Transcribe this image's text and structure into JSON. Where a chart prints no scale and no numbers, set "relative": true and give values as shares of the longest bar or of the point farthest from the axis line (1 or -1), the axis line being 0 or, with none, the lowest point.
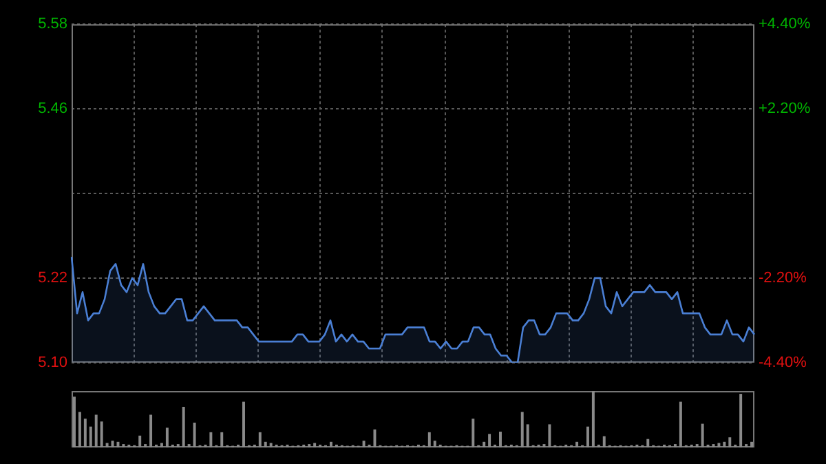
{
  "chart_data": [
    {
      "type": "area",
      "categories": [
        null,
        null,
        null,
        null,
        null,
        null,
        null,
        null,
        null,
        null,
        null,
        null,
        null,
        null,
        null,
        null,
        null,
        null,
        null,
        null,
        null,
        null,
        null,
        null,
        null,
        null,
        null,
        null,
        null,
        null,
        null,
        null,
        null,
        null,
        null,
        null,
        null,
        null,
        null,
        null,
        null,
        null,
        null,
        null,
        null,
        null,
        null,
        null,
        null,
        null,
        null,
        null,
        null,
        null,
        null,
        null,
        null,
        null,
        null,
        null,
        null,
        null,
        null,
        null,
        null,
        null,
        null,
        null,
        null,
        null,
        null,
        null,
        null,
        null,
        null,
        null,
        null,
        null,
        null,
        null,
        null,
        null,
        null,
        null,
        null,
        null,
        null,
        null,
        null,
        null,
        null,
        null,
        null,
        null,
        null,
        null,
        null,
        null,
        null,
        null,
        null,
        null,
        null,
        null,
        null,
        null,
        null,
        null,
        null,
        null,
        null,
        null,
        null,
        null,
        null,
        null,
        null,
        null,
        null,
        null,
        null,
        null,
        null,
        null,
        null
      ],
      "series": [
        {
          "color": "#4a7fd4",
          "values": [
            5.25,
            5.17,
            5.2,
            5.16,
            5.17,
            5.17,
            5.19,
            5.23,
            5.24,
            5.21,
            5.2,
            5.22,
            5.21,
            5.24,
            5.2,
            5.18,
            5.17,
            5.17,
            5.18,
            5.19,
            5.19,
            5.16,
            5.16,
            5.17,
            5.18,
            5.17,
            5.16,
            5.16,
            5.16,
            5.16,
            5.16,
            5.15,
            5.15,
            5.14,
            5.13,
            5.13,
            5.13,
            5.13,
            5.13,
            5.13,
            5.13,
            5.14,
            5.14,
            5.13,
            5.13,
            5.13,
            5.14,
            5.16,
            5.13,
            5.14,
            5.13,
            5.14,
            5.13,
            5.13,
            5.12,
            5.12,
            5.12,
            5.14,
            5.14,
            5.14,
            5.14,
            5.15,
            5.15,
            5.15,
            5.15,
            5.13,
            5.13,
            5.12,
            5.13,
            5.12,
            5.12,
            5.13,
            5.13,
            5.15,
            5.15,
            5.14,
            5.14,
            5.12,
            5.11,
            5.11,
            5.1,
            5.1,
            5.15,
            5.16,
            5.16,
            5.14,
            5.14,
            5.15,
            5.17,
            5.17,
            5.17,
            5.16,
            5.16,
            5.17,
            5.19,
            5.22,
            5.22,
            5.18,
            5.17,
            5.2,
            5.18,
            5.19,
            5.2,
            5.2,
            5.2,
            5.21,
            5.2,
            5.2,
            5.2,
            5.19,
            5.2,
            5.17,
            5.17,
            5.17,
            5.17,
            5.15,
            5.14,
            5.14,
            5.14,
            5.16,
            5.14,
            5.14,
            5.13,
            5.15,
            5.14
          ]
        }
      ],
      "ylim": [
        5.1,
        5.58
      ],
      "yticks": [
        {
          "value": 5.1,
          "label": "5.10"
        },
        {
          "value": 5.22,
          "label": "5.22"
        },
        {
          "value": 5.34,
          "label": null
        },
        {
          "value": 5.46,
          "label": "5.46"
        },
        {
          "value": 5.58,
          "label": "5.58"
        }
      ],
      "y2lim": [
        -4.4,
        4.4
      ],
      "y2ticks": [
        {
          "value": -4.4,
          "label": "-4.40%"
        },
        {
          "value": -2.2,
          "label": "-2.20%"
        },
        {
          "value": 0,
          "label": null
        },
        {
          "value": 2.2,
          "label": "+2.20%"
        },
        {
          "value": 4.4,
          "label": "+4.40%"
        }
      ],
      "grid": true,
      "legend": false
    },
    {
      "type": "bar",
      "relative": true,
      "categories": [
        null,
        null,
        null,
        null,
        null,
        null,
        null,
        null,
        null,
        null,
        null,
        null,
        null,
        null,
        null,
        null,
        null,
        null,
        null,
        null,
        null,
        null,
        null,
        null,
        null,
        null,
        null,
        null,
        null,
        null,
        null,
        null,
        null,
        null,
        null,
        null,
        null,
        null,
        null,
        null,
        null,
        null,
        null,
        null,
        null,
        null,
        null,
        null,
        null,
        null,
        null,
        null,
        null,
        null,
        null,
        null,
        null,
        null,
        null,
        null,
        null,
        null,
        null,
        null,
        null,
        null,
        null,
        null,
        null,
        null,
        null,
        null,
        null,
        null,
        null,
        null,
        null,
        null,
        null,
        null,
        null,
        null,
        null,
        null,
        null,
        null,
        null,
        null,
        null,
        null,
        null,
        null,
        null,
        null,
        null,
        null,
        null,
        null,
        null,
        null,
        null,
        null,
        null,
        null,
        null,
        null,
        null,
        null,
        null,
        null,
        null,
        null,
        null,
        null,
        null,
        null,
        null,
        null,
        null,
        null,
        null,
        null,
        null,
        null,
        null
      ],
      "values": [
        0.9,
        0.63,
        0.51,
        0.37,
        0.58,
        0.46,
        0.08,
        0.12,
        0.1,
        0.06,
        0.05,
        0.04,
        0.21,
        0.06,
        0.58,
        0.05,
        0.08,
        0.35,
        0.05,
        0.06,
        0.72,
        0.06,
        0.44,
        0.04,
        0.05,
        0.27,
        0.04,
        0.27,
        0.04,
        0.03,
        0.05,
        0.81,
        0.04,
        0.05,
        0.27,
        0.1,
        0.08,
        0.05,
        0.04,
        0.05,
        0.03,
        0.04,
        0.05,
        0.06,
        0.08,
        0.05,
        0.04,
        0.1,
        0.05,
        0.04,
        0.03,
        0.04,
        0.03,
        0.12,
        0.05,
        0.32,
        0.04,
        0.03,
        0.03,
        0.04,
        0.03,
        0.04,
        0.03,
        0.05,
        0.04,
        0.27,
        0.12,
        0.05,
        0.03,
        0.03,
        0.04,
        0.03,
        0.03,
        0.51,
        0.04,
        0.1,
        0.24,
        0.05,
        0.28,
        0.04,
        0.05,
        0.04,
        0.63,
        0.41,
        0.04,
        0.05,
        0.06,
        0.41,
        0.04,
        0.03,
        0.05,
        0.04,
        0.1,
        0.04,
        0.37,
        1.0,
        0.05,
        0.2,
        0.04,
        0.03,
        0.04,
        0.03,
        0.04,
        0.05,
        0.04,
        0.15,
        0.04,
        0.03,
        0.05,
        0.04,
        0.06,
        0.81,
        0.04,
        0.05,
        0.06,
        0.42,
        0.05,
        0.06,
        0.08,
        0.1,
        0.18,
        0.05,
        0.95,
        0.06,
        0.1
      ],
      "color": "#8a8a8a"
    }
  ]
}
